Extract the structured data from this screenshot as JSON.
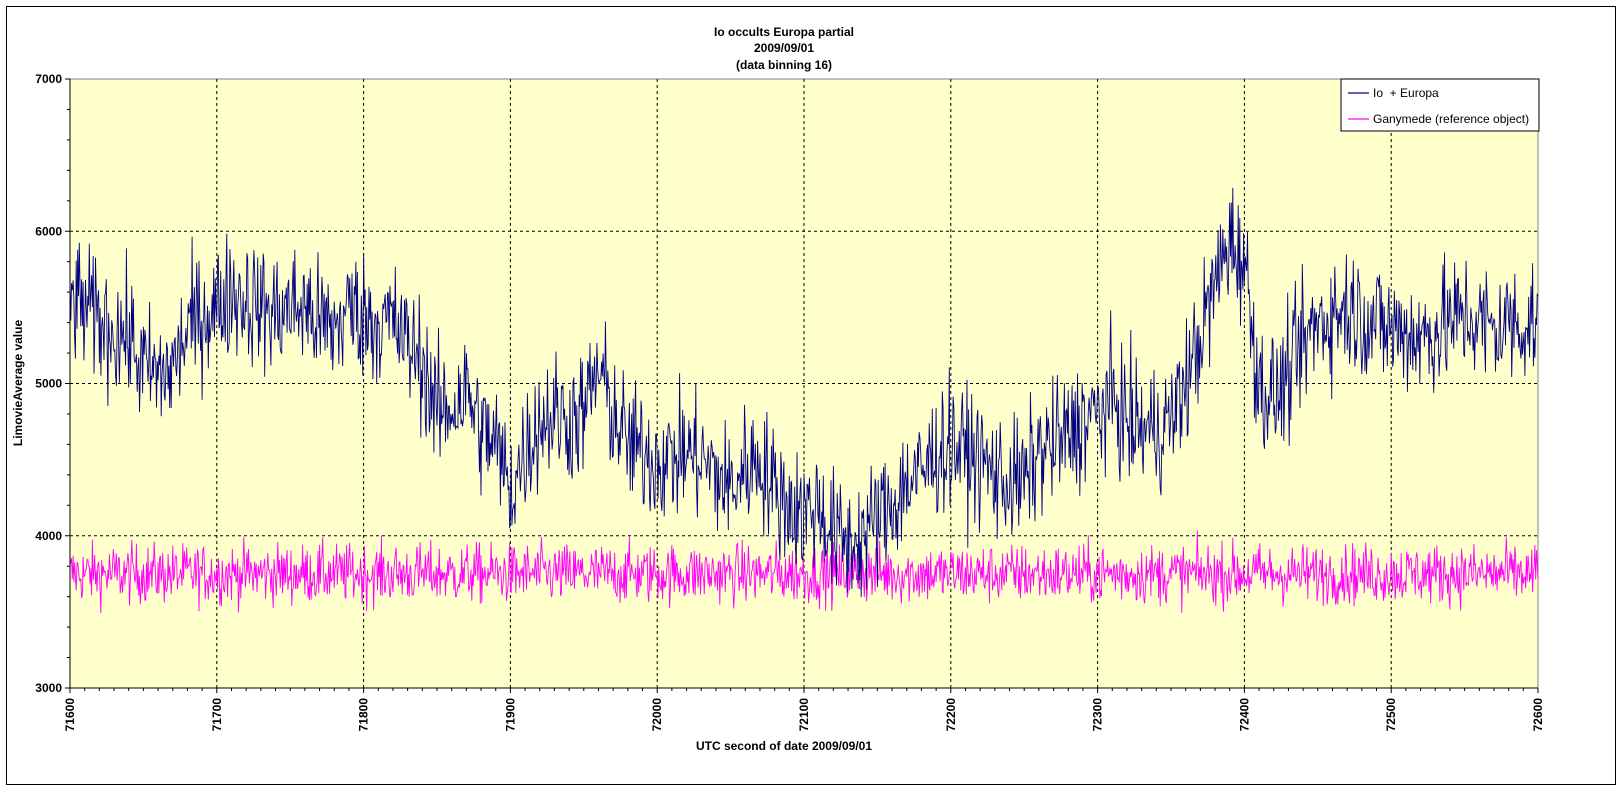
{
  "chart_data": {
    "type": "line",
    "title": [
      "Io occults Europa partial",
      "2009/09/01",
      "(data binning 16)"
    ],
    "xlabel": "UTC second  of date 2009/09/01",
    "ylabel": "LimovieAverage value",
    "xlim": [
      71600,
      72600
    ],
    "ylim": [
      3000,
      7000
    ],
    "x_ticks": [
      71600,
      71700,
      71800,
      71900,
      72000,
      72100,
      72200,
      72300,
      72400,
      72500,
      72600
    ],
    "y_ticks": [
      3000,
      4000,
      5000,
      6000,
      7000
    ],
    "grid": true,
    "legend_position": "top-right",
    "plot_background": "#ffffcc",
    "series": [
      {
        "name": "Io  + Europa",
        "color": "#000080",
        "x": [
          71600,
          71610,
          71620,
          71630,
          71640,
          71650,
          71660,
          71670,
          71680,
          71690,
          71700,
          71710,
          71720,
          71730,
          71740,
          71750,
          71760,
          71770,
          71780,
          71790,
          71800,
          71810,
          71820,
          71830,
          71840,
          71850,
          71860,
          71870,
          71880,
          71890,
          71900,
          71910,
          71920,
          71930,
          71940,
          71950,
          71960,
          71970,
          71980,
          71990,
          72000,
          72010,
          72020,
          72030,
          72040,
          72050,
          72060,
          72070,
          72080,
          72090,
          72100,
          72110,
          72120,
          72130,
          72140,
          72150,
          72160,
          72170,
          72180,
          72190,
          72200,
          72210,
          72220,
          72230,
          72240,
          72250,
          72260,
          72270,
          72280,
          72290,
          72300,
          72310,
          72320,
          72330,
          72340,
          72350,
          72360,
          72370,
          72380,
          72390,
          72400,
          72410,
          72420,
          72430,
          72440,
          72450,
          72460,
          72470,
          72480,
          72490,
          72500,
          72510,
          72520,
          72530,
          72540,
          72550,
          72560,
          72570,
          72580,
          72590,
          72600
        ],
        "y": [
          5550,
          5500,
          5400,
          5350,
          5300,
          5100,
          5050,
          5100,
          5350,
          5450,
          5500,
          5600,
          5550,
          5500,
          5450,
          5500,
          5500,
          5400,
          5350,
          5500,
          5450,
          5400,
          5400,
          5250,
          5150,
          4800,
          4850,
          4950,
          4700,
          4600,
          4300,
          4550,
          4750,
          4800,
          4750,
          4800,
          5100,
          4800,
          4600,
          4550,
          4500,
          4500,
          4550,
          4500,
          4400,
          4300,
          4450,
          4500,
          4300,
          4200,
          4150,
          4200,
          4000,
          3950,
          4000,
          4100,
          4200,
          4350,
          4400,
          4550,
          4600,
          4550,
          4500,
          4400,
          4350,
          4350,
          4550,
          4600,
          4650,
          4750,
          4800,
          4900,
          4750,
          4700,
          4700,
          4750,
          5000,
          5300,
          5650,
          5950,
          5800,
          5000,
          4900,
          5050,
          5250,
          5400,
          5450,
          5500,
          5450,
          5400,
          5350,
          5350,
          5300,
          5350,
          5400,
          5450,
          5400,
          5350,
          5400,
          5400,
          5400
        ]
      },
      {
        "name": "Ganymede (reference object)",
        "color": "#ff00ff",
        "x": [
          71600,
          71700,
          71800,
          71900,
          72000,
          72100,
          72200,
          72300,
          72400,
          72500,
          72600
        ],
        "y": [
          3750,
          3750,
          3750,
          3750,
          3750,
          3750,
          3750,
          3750,
          3750,
          3750,
          3750
        ]
      }
    ]
  }
}
